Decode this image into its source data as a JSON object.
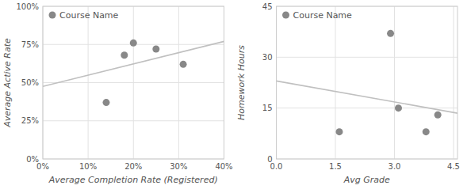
{
  "chart_data": [
    {
      "type": "scatter",
      "xlabel": "Average Completion Rate (Registered)",
      "ylabel": "Average Active Rate",
      "series": [
        {
          "name": "Course Name",
          "type": "scatter",
          "color": "#888888",
          "x": [
            0.14,
            0.18,
            0.2,
            0.25,
            0.31
          ],
          "values": [
            0.37,
            0.68,
            0.76,
            0.72,
            0.62
          ]
        },
        {
          "type": "line",
          "color": "#c0c0c0",
          "x": [
            0.0,
            0.4
          ],
          "values": [
            0.475,
            0.77
          ]
        }
      ],
      "xlim": [
        0.0,
        0.4
      ],
      "ylim": [
        0.0,
        1.0
      ],
      "xticks": [
        {
          "value": 0.0,
          "label": "0%"
        },
        {
          "value": 0.1,
          "label": "10%"
        },
        {
          "value": 0.2,
          "label": "20%"
        },
        {
          "value": 0.3,
          "label": "30%"
        },
        {
          "value": 0.4,
          "label": "40%"
        }
      ],
      "yticks": [
        {
          "value": 0.0,
          "label": "0%"
        },
        {
          "value": 0.25,
          "label": "25%"
        },
        {
          "value": 0.5,
          "label": "50%"
        },
        {
          "value": 0.75,
          "label": "75%"
        },
        {
          "value": 1.0,
          "label": "100%"
        }
      ],
      "grid": true,
      "legend": "upper left"
    },
    {
      "type": "scatter",
      "xlabel": "Avg Grade",
      "ylabel": "Homework Hours",
      "series": [
        {
          "name": "Course Name",
          "type": "scatter",
          "color": "#888888",
          "x": [
            1.6,
            2.9,
            3.1,
            3.8,
            4.1
          ],
          "values": [
            8.0,
            37.0,
            15.0,
            8.0,
            13.0
          ]
        },
        {
          "type": "line",
          "color": "#c0c0c0",
          "x": [
            0.0,
            4.6
          ],
          "values": [
            23.0,
            13.5
          ]
        }
      ],
      "xlim": [
        0.0,
        4.6
      ],
      "ylim": [
        0.0,
        45.0
      ],
      "xticks": [
        {
          "value": 0.0,
          "label": "0.0"
        },
        {
          "value": 1.5,
          "label": "1.5"
        },
        {
          "value": 3.0,
          "label": "3.0"
        },
        {
          "value": 4.5,
          "label": "4.5"
        }
      ],
      "yticks": [
        0,
        15,
        30,
        45
      ],
      "grid": true,
      "legend": "upper left"
    }
  ]
}
